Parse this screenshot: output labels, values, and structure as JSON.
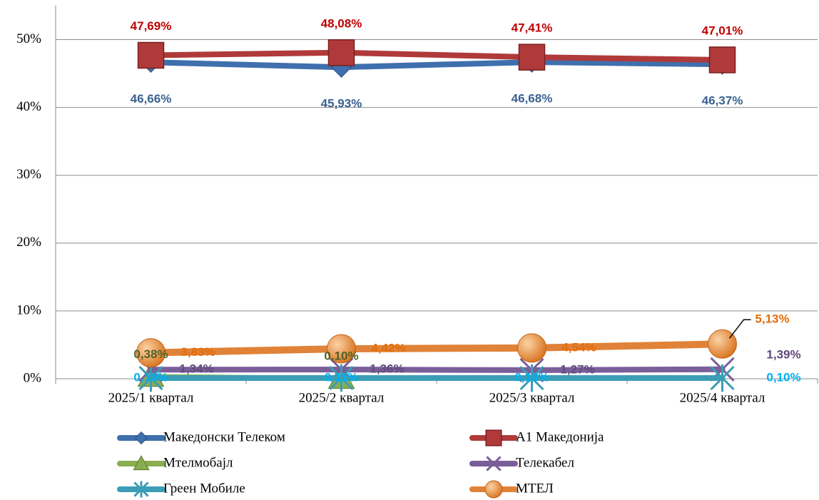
{
  "chart_data": {
    "type": "line",
    "categories": [
      "2025/1 квартал",
      "2025/2 квартал",
      "2025/3 квартал",
      "2025/4 квартал"
    ],
    "series": [
      {
        "name": "Македонски Телеком",
        "color": "#3f6fad",
        "label_color": "#3a6190",
        "marker": "diamond",
        "values": [
          46.66,
          45.93,
          46.68,
          46.37
        ],
        "value_labels": [
          "46,66%",
          "45,93%",
          "46,68%",
          "46,37%"
        ]
      },
      {
        "name": "А1 Македонија",
        "color": "#b03a3a",
        "label_color": "#c00000",
        "marker": "square",
        "values": [
          47.69,
          48.08,
          47.41,
          47.01
        ],
        "value_labels": [
          "47,69%",
          "48,08%",
          "47,41%",
          "47,01%"
        ]
      },
      {
        "name": "Мтелмобајл",
        "color": "#8aae4f",
        "label_color": "#4f6228",
        "marker": "triangle",
        "values": [
          0.38,
          0.1,
          null,
          null
        ],
        "value_labels": [
          "0,38%",
          "0,10%",
          null,
          null
        ]
      },
      {
        "name": "Телекабел",
        "color": "#7a5e99",
        "label_color": "#5f497a",
        "marker": "x",
        "values": [
          1.34,
          1.36,
          1.27,
          1.39
        ],
        "value_labels": [
          "1,34%",
          "1,36%",
          "1,27%",
          "1,39%"
        ]
      },
      {
        "name": "Греен Мобиле",
        "color": "#3b9db6",
        "label_color": "#00b0f0",
        "marker": "star",
        "values": [
          0.1,
          0.11,
          0.1,
          0.1
        ],
        "value_labels": [
          "0,10%",
          "0,11%",
          "0,10%",
          "0,10%"
        ]
      },
      {
        "name": "МТЕЛ",
        "color": "#e08238",
        "label_color": "#e36c09",
        "marker": "circle",
        "values": [
          3.83,
          4.42,
          4.54,
          5.13
        ],
        "value_labels": [
          "3,83%",
          "4,42%",
          "4,54%",
          "5,13%"
        ]
      }
    ],
    "ylim": [
      0,
      55
    ],
    "yticks": [
      {
        "value": 0,
        "label": "0%"
      },
      {
        "value": 10,
        "label": "10%"
      },
      {
        "value": 20,
        "label": "20%"
      },
      {
        "value": 30,
        "label": "30%"
      },
      {
        "value": 40,
        "label": "40%"
      },
      {
        "value": 50,
        "label": "50%"
      }
    ],
    "grid": true
  }
}
